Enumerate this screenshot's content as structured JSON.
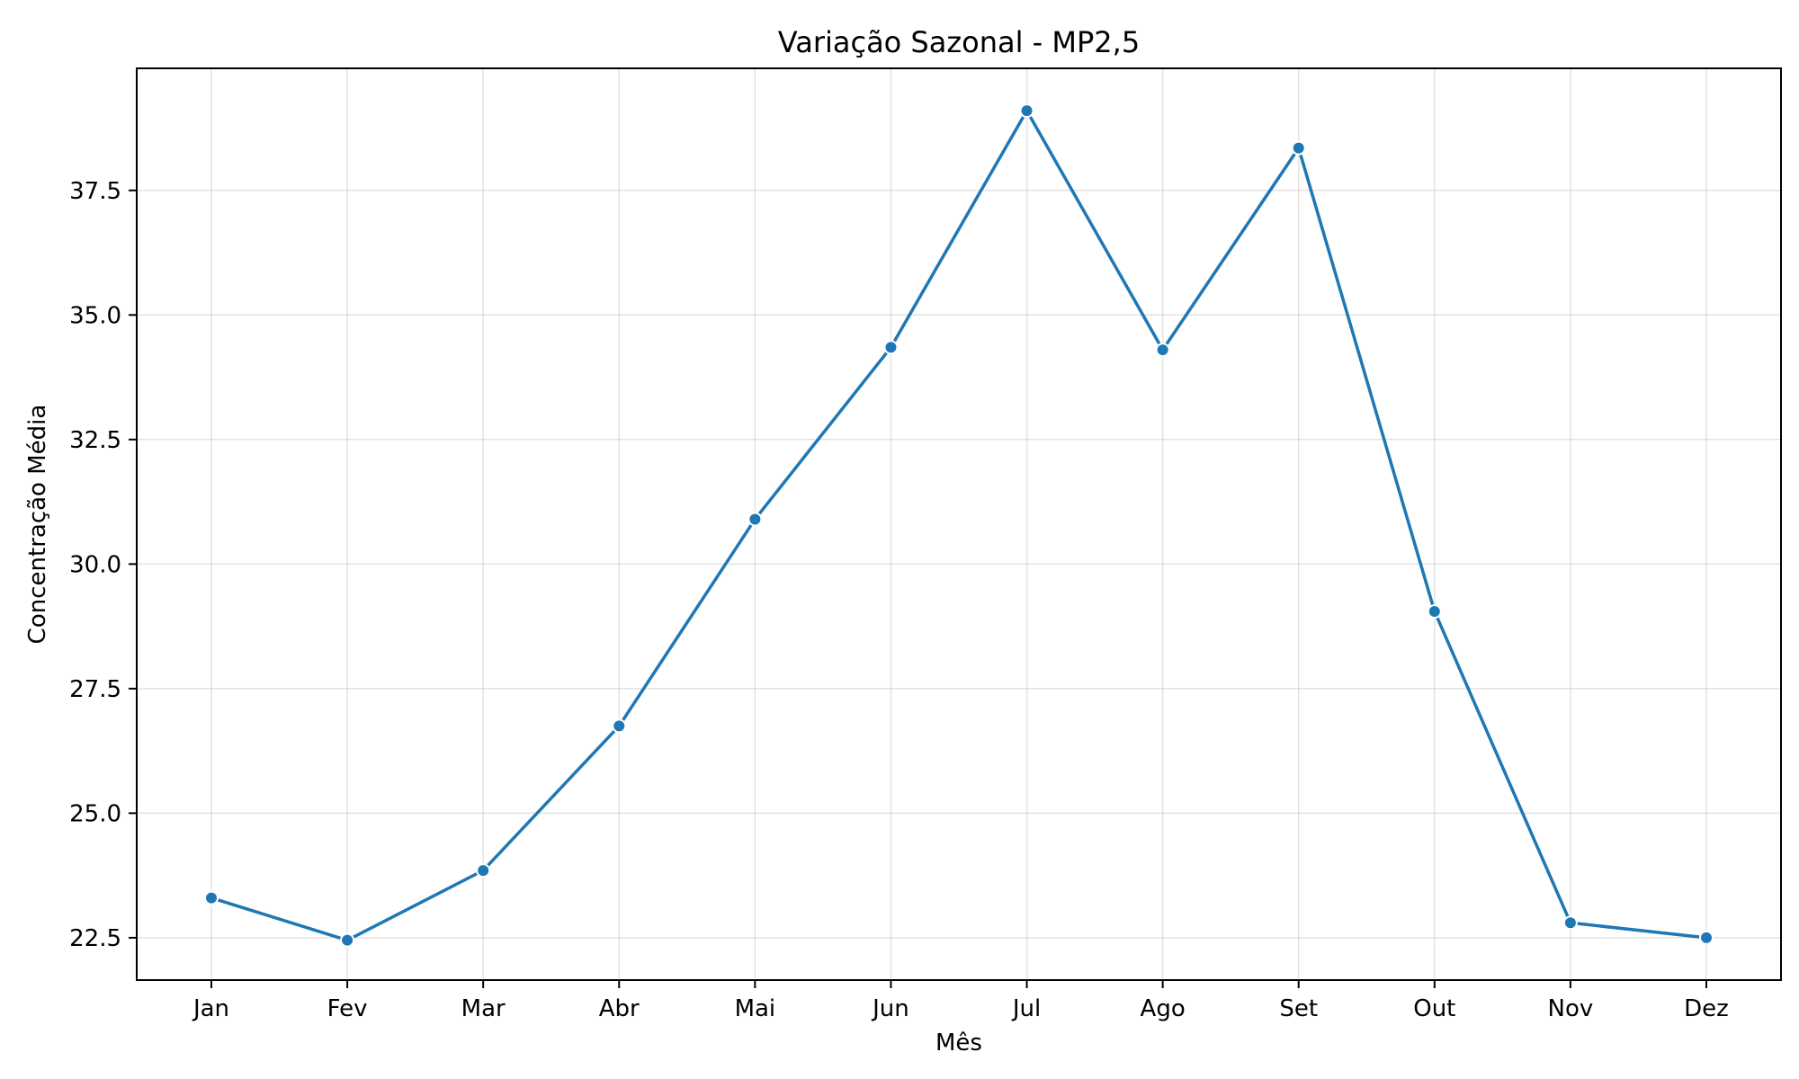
{
  "chart_data": {
    "type": "line",
    "title": "Variação Sazonal - MP2,5",
    "xlabel": "Mês",
    "ylabel": "Concentração Média",
    "categories": [
      "Jan",
      "Fev",
      "Mar",
      "Abr",
      "Mai",
      "Jun",
      "Jul",
      "Ago",
      "Set",
      "Out",
      "Nov",
      "Dez"
    ],
    "series": [
      {
        "values": [
          23.3,
          22.45,
          23.85,
          26.75,
          30.9,
          34.35,
          39.1,
          34.3,
          38.35,
          29.05,
          22.8,
          22.5
        ],
        "color": "#1f77b4"
      }
    ],
    "ylim": [
      21.65,
      39.95
    ],
    "yticks": [
      22.5,
      25.0,
      27.5,
      30.0,
      32.5,
      35.0,
      37.5
    ],
    "ytick_labels": [
      "22.5",
      "25.0",
      "27.5",
      "30.0",
      "32.5",
      "35.0",
      "37.5"
    ],
    "grid": true,
    "legend": "none"
  }
}
